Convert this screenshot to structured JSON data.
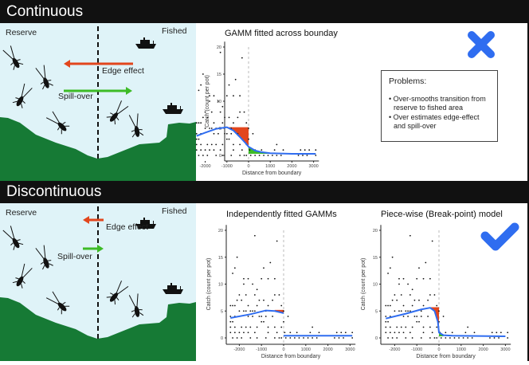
{
  "sections": [
    {
      "title": "Continuous",
      "reserve_label": "Reserve",
      "fished_label": "Fished",
      "edge_label": "Edge effect",
      "spill_label": "Spill-over"
    },
    {
      "title": "Discontinuous",
      "reserve_label": "Reserve",
      "fished_label": "Fished",
      "edge_label": "Edge effect",
      "spill_label": "Spill-over"
    }
  ],
  "problems": {
    "title": "Problems:",
    "items": [
      "• Over-smooths transition from reserve to fished area",
      "• Over estimates edge-effect and spill-over"
    ]
  },
  "verdicts": {
    "continuous": "cross-icon",
    "discontinuous": "check-icon"
  },
  "colors": {
    "water": "#dff3f8",
    "ground": "#167a35",
    "edge": "#e2461d",
    "spill": "#3dbb26",
    "fit": "#2f6df0",
    "verdict": "#2f6df0"
  },
  "chart_data": [
    {
      "type": "scatter",
      "title": "GAMM  fitted across bounday",
      "xlabel": "Distance from boundary",
      "ylabel": "Catch (count per pot)",
      "xticks": [
        "-2000",
        "-1000",
        "0",
        "1000",
        "2000",
        "3000"
      ],
      "yticks": [
        "0",
        "5",
        "10",
        "15",
        "20"
      ],
      "xlim": [
        -2500,
        3100
      ],
      "ylim": [
        0,
        20
      ],
      "fit": [
        [
          -2400,
          3.6
        ],
        [
          -2000,
          4.2
        ],
        [
          -1500,
          4.9
        ],
        [
          -1000,
          5.2
        ],
        [
          -700,
          4.6
        ],
        [
          -400,
          3.4
        ],
        [
          -100,
          2.1
        ],
        [
          0,
          1.6
        ],
        [
          300,
          0.9
        ],
        [
          600,
          0.6
        ],
        [
          1000,
          0.4
        ],
        [
          2000,
          0.3
        ],
        [
          3100,
          0.3
        ]
      ],
      "edge_area": {
        "x": [
          -1000,
          0
        ],
        "top": 5.2
      },
      "spill_area": {
        "x": [
          0,
          1000
        ],
        "bottom": 0.3
      }
    },
    {
      "type": "scatter",
      "title": "Independently fitted GAMMs",
      "xlabel": "Distance from boundary",
      "ylabel": "Catch (count per pot)",
      "xticks": [
        "-2000",
        "-1000",
        "0",
        "1000",
        "2000",
        "3000"
      ],
      "yticks": [
        "0",
        "5",
        "10",
        "15",
        "20"
      ],
      "xlim": [
        -2500,
        3100
      ],
      "ylim": [
        0,
        20
      ],
      "fit": [
        [
          -2400,
          3.7
        ],
        [
          -1500,
          4.4
        ],
        [
          -800,
          5.1
        ],
        [
          -400,
          5.0
        ],
        [
          0,
          4.6
        ]
      ],
      "fit2": [
        [
          0,
          0.4
        ],
        [
          3100,
          0.4
        ]
      ],
      "edge_area": {
        "x": [
          -400,
          0
        ],
        "top": 5.2
      }
    },
    {
      "type": "scatter",
      "title": "Piece-wise (Break-point) model",
      "xlabel": "Distance from boundary",
      "ylabel": "Catch (count per pot)",
      "xticks": [
        "-2000",
        "-1000",
        "0",
        "1000",
        "2000",
        "3000"
      ],
      "yticks": [
        "0",
        "5",
        "10",
        "15",
        "20"
      ],
      "xlim": [
        -2500,
        3100
      ],
      "ylim": [
        0,
        20
      ],
      "fit": [
        [
          -2400,
          3.6
        ],
        [
          -1500,
          4.5
        ],
        [
          -800,
          5.3
        ],
        [
          -400,
          5.6
        ],
        [
          -200,
          5.0
        ],
        [
          -50,
          3
        ],
        [
          0,
          1.0
        ],
        [
          200,
          0.5
        ],
        [
          600,
          0.4
        ],
        [
          3000,
          0.3
        ]
      ],
      "edge_area": {
        "x": [
          -400,
          0
        ],
        "top": 5.7
      },
      "spill_area": {
        "x": [
          0,
          200
        ],
        "bottom": 0.3
      }
    }
  ],
  "points": [
    [
      -2300,
      12
    ],
    [
      -2200,
      13
    ],
    [
      -2100,
      15
    ],
    [
      -1800,
      11
    ],
    [
      -1800,
      10
    ],
    [
      -1600,
      11
    ],
    [
      -1300,
      19
    ],
    [
      -1400,
      10
    ],
    [
      -1200,
      9
    ],
    [
      -1000,
      11
    ],
    [
      -900,
      13
    ],
    [
      -700,
      11
    ],
    [
      -600,
      14
    ],
    [
      -400,
      11
    ],
    [
      -300,
      18
    ],
    [
      -200,
      8
    ],
    [
      -400,
      8
    ],
    [
      -2000,
      8
    ],
    [
      -1700,
      8
    ],
    [
      -1300,
      8
    ],
    [
      -2100,
      7
    ],
    [
      -1900,
      7
    ],
    [
      -1100,
      7
    ],
    [
      -900,
      7
    ],
    [
      -500,
      7
    ],
    [
      -2400,
      6
    ],
    [
      -2300,
      6
    ],
    [
      -2200,
      6
    ],
    [
      -1600,
      6
    ],
    [
      -1200,
      6
    ],
    [
      -700,
      6
    ],
    [
      -100,
      6
    ],
    [
      -2000,
      5
    ],
    [
      -1800,
      5
    ],
    [
      -1700,
      5
    ],
    [
      -1500,
      5
    ],
    [
      -1400,
      5
    ],
    [
      -1300,
      5
    ],
    [
      -800,
      5
    ],
    [
      -2400,
      4
    ],
    [
      -2200,
      4
    ],
    [
      -1600,
      4
    ],
    [
      -1400,
      4
    ],
    [
      -1100,
      4
    ],
    [
      -1000,
      4
    ],
    [
      -800,
      4
    ],
    [
      -500,
      4
    ],
    [
      -2400,
      3
    ],
    [
      -2300,
      3
    ],
    [
      -1000,
      3
    ],
    [
      -900,
      3
    ],
    [
      -2400,
      2
    ],
    [
      -2200,
      2
    ],
    [
      -1900,
      2
    ],
    [
      -1700,
      2
    ],
    [
      -1500,
      2
    ],
    [
      -1200,
      2
    ],
    [
      -700,
      2
    ],
    [
      -400,
      2
    ],
    [
      -100,
      2
    ],
    [
      -2400,
      1
    ],
    [
      -2200,
      1
    ],
    [
      -2000,
      1
    ],
    [
      -1800,
      1
    ],
    [
      -1600,
      1
    ],
    [
      -1300,
      1
    ],
    [
      -700,
      1
    ],
    [
      -300,
      1
    ],
    [
      -2300,
      0
    ],
    [
      -2100,
      0
    ],
    [
      -1900,
      0
    ],
    [
      -1500,
      0
    ],
    [
      -1200,
      0
    ],
    [
      -800,
      0
    ],
    [
      -400,
      0
    ],
    [
      -200,
      0
    ],
    [
      -100,
      0
    ],
    [
      0,
      5
    ],
    [
      200,
      4
    ],
    [
      0,
      3
    ],
    [
      1300,
      2
    ],
    [
      50,
      1
    ],
    [
      300,
      1
    ],
    [
      600,
      1
    ],
    [
      1200,
      1
    ],
    [
      1600,
      1
    ],
    [
      2400,
      1
    ],
    [
      2600,
      1
    ],
    [
      2800,
      1
    ],
    [
      3100,
      1
    ],
    [
      100,
      0
    ],
    [
      300,
      0
    ],
    [
      500,
      0
    ],
    [
      700,
      0
    ],
    [
      900,
      0
    ],
    [
      1100,
      0
    ],
    [
      1300,
      0
    ],
    [
      1500,
      0
    ],
    [
      2300,
      0
    ],
    [
      2500,
      0
    ],
    [
      2700,
      0
    ],
    [
      3100,
      0
    ]
  ]
}
